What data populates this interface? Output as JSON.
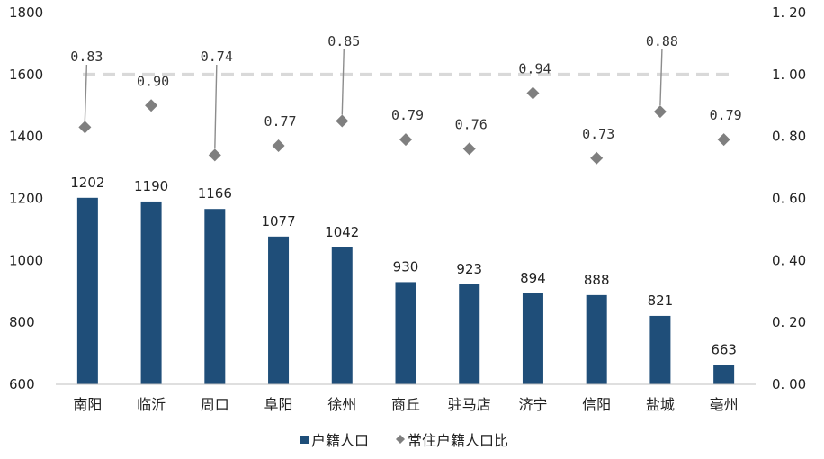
{
  "chart_data": {
    "type": "bar",
    "categories": [
      "南阳",
      "临沂",
      "周口",
      "阜阳",
      "徐州",
      "商丘",
      "驻马店",
      "济宁",
      "信阳",
      "盐城",
      "亳州"
    ],
    "series": [
      {
        "name": "户籍人口",
        "type": "bar",
        "axis": "left",
        "color": "#1f4e79",
        "values": [
          1202,
          1190,
          1166,
          1077,
          1042,
          930,
          923,
          894,
          888,
          821,
          663
        ],
        "labels": [
          "1202",
          "1190",
          "1166",
          "1077",
          "1042",
          "930",
          "923",
          "894",
          "888",
          "821",
          "663"
        ]
      },
      {
        "name": "常住户籍人口比",
        "type": "scatter",
        "axis": "right",
        "color": "#7f7f7f",
        "marker": "diamond",
        "values": [
          0.83,
          0.9,
          0.74,
          0.77,
          0.85,
          0.79,
          0.76,
          0.94,
          0.73,
          0.88,
          0.79
        ],
        "labels": [
          "0.83",
          "0.90",
          "0.74",
          "0.77",
          "0.85",
          "0.79",
          "0.76",
          "0.94",
          "0.73",
          "0.88",
          "0.79"
        ]
      }
    ],
    "reference_line": {
      "value": 1.0,
      "axis": "right",
      "style": "dashed",
      "color": "#d9d9d9"
    },
    "y_left": {
      "min": 600,
      "max": 1800,
      "ticks": [
        600,
        800,
        1000,
        1200,
        1400,
        1600,
        1800
      ],
      "tick_labels": [
        "600",
        "800",
        "1000",
        "1200",
        "1400",
        "1600",
        "1800"
      ]
    },
    "y_right": {
      "min": 0.0,
      "max": 1.2,
      "ticks": [
        0.0,
        0.2,
        0.4,
        0.6,
        0.8,
        1.0,
        1.2
      ],
      "tick_labels": [
        "0. 00",
        "0. 20",
        "0. 40",
        "0. 60",
        "0. 80",
        "1. 00",
        "1. 20"
      ]
    },
    "grid": false,
    "legend": {
      "position": "bottom",
      "items": [
        "户籍人口",
        "常住户籍人口比"
      ]
    }
  }
}
